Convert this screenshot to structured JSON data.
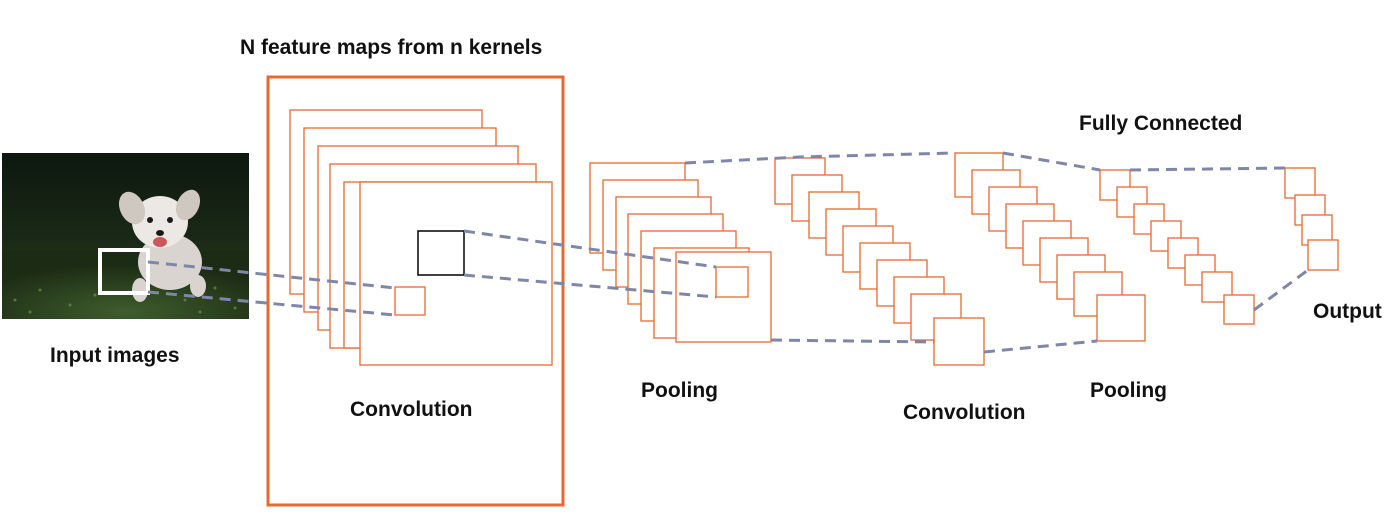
{
  "labels": {
    "feature_maps_title": "N feature maps from n kernels",
    "input_images": "Input images",
    "convolution_1": "Convolution",
    "pooling_1": "Pooling",
    "convolution_2": "Convolution",
    "pooling_2": "Pooling",
    "fully_connected": "Fully Connected",
    "output": "Output"
  },
  "colors": {
    "feature_map_stroke": "#E8692E",
    "connector_dash": "#7F86A8",
    "text": "#111111",
    "kernel_window": "#000000",
    "input_window": "#ffffff"
  },
  "image": {
    "description_icon": "puppy-photo-icon"
  }
}
